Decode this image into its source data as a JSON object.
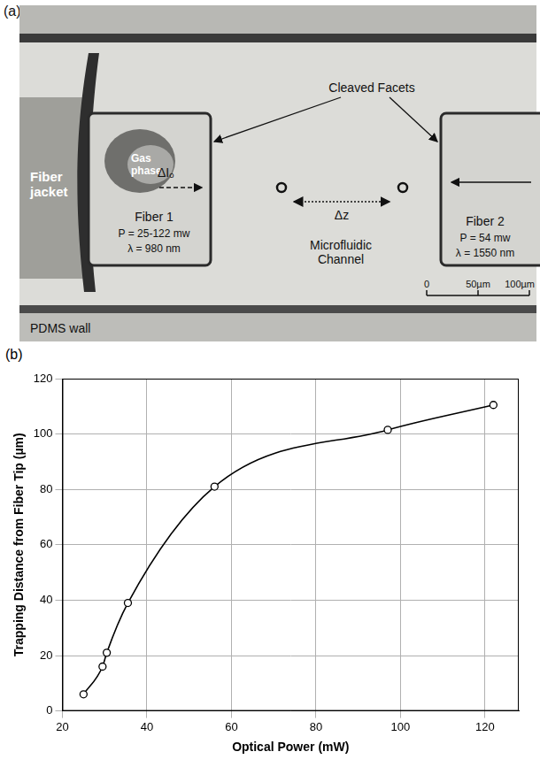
{
  "photo": {
    "label": "(a)",
    "texts": {
      "facets": "Cleaved Facets",
      "gas": "Gas phase",
      "jacket": "Fiber jacket",
      "fiber1": "Fiber 1",
      "power1": "P = 25-122 mw",
      "lambda1": "λ = 980 nm",
      "delta_i": "ΔIₒ",
      "delta_z": "Δz",
      "channel": "Microfluidic Channel",
      "fiber2": "Fiber 2",
      "power2": "P = 54 mw",
      "lambda2": "λ = 1550 nm",
      "wall": "PDMS wall"
    },
    "scale_bar": {
      "ticks": [
        {
          "value": 0,
          "label": "0"
        },
        {
          "value": 50,
          "label": "50µm"
        },
        {
          "value": 100,
          "label": "100µm"
        }
      ]
    }
  },
  "chart_data": {
    "label": "(b)",
    "type": "line",
    "x_label": "Optical Power (mW)",
    "y_label": "Trapping Distance from Fiber Tip (µm)",
    "x": [
      25,
      29.5,
      30.5,
      35.5,
      56,
      97,
      122
    ],
    "series": [
      {
        "name": "Trapping distance",
        "color": "#000000",
        "marker": "open_circle",
        "line_style": "solid",
        "values": [
          6,
          16,
          21,
          39,
          81,
          101.5,
          110.5
        ]
      }
    ],
    "xlim": [
      20,
      128
    ],
    "xticks": [
      20,
      40,
      60,
      80,
      100,
      120
    ],
    "ylim": [
      0,
      120
    ],
    "yticks": [
      0,
      20,
      40,
      60,
      80,
      100,
      120
    ],
    "grid": true
  }
}
